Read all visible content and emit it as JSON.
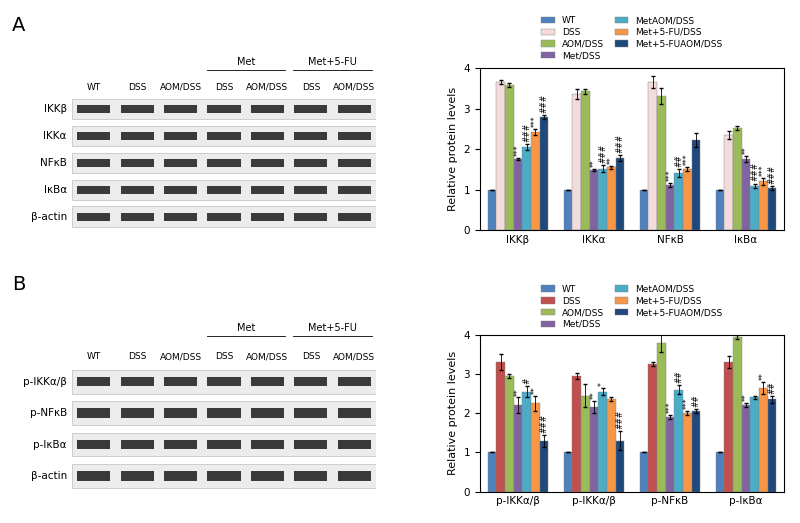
{
  "chart_data": [
    {
      "type": "bar",
      "categories": [
        "IKKβ",
        "IKKα",
        "NFκB",
        "IκBα"
      ],
      "y_label": "Relative protein levels",
      "ylim": [
        0,
        4
      ],
      "yticks": [
        0,
        1,
        2,
        3,
        4
      ],
      "legend": "upper center",
      "series": [
        {
          "name": "WT",
          "color": "#4F81BD",
          "values": [
            1,
            1,
            1,
            1
          ],
          "errors": [
            0,
            0,
            0,
            0
          ],
          "annotations": [
            null,
            null,
            null,
            null
          ]
        },
        {
          "name": "DSS",
          "color": "#F2DCDB",
          "values": [
            3.65,
            3.35,
            3.65,
            2.35
          ],
          "errors": [
            0.05,
            0.12,
            0.15,
            0.1
          ],
          "annotations": [
            null,
            null,
            null,
            null
          ]
        },
        {
          "name": "AOM/DSS",
          "color": "#9BBB59",
          "values": [
            3.58,
            3.42,
            3.3,
            2.52
          ],
          "errors": [
            0.05,
            0.05,
            0.2,
            0.05
          ],
          "annotations": [
            null,
            null,
            null,
            null
          ]
        },
        {
          "name": "Met/DSS",
          "color": "#8064A2",
          "values": [
            1.75,
            1.48,
            1.12,
            1.75
          ],
          "errors": [
            0.03,
            0.03,
            0.05,
            0.08
          ],
          "annotations": [
            "***",
            "**",
            "***",
            "**"
          ]
        },
        {
          "name": "MetAOM/DSS",
          "color": "#4BACC6",
          "values": [
            2.05,
            1.52,
            1.4,
            1.1
          ],
          "errors": [
            0.08,
            0.08,
            0.1,
            0.05
          ],
          "annotations": [
            "###",
            "###",
            "##",
            "###"
          ]
        },
        {
          "name": "Met+5-FU/DSS",
          "color": "#F79646",
          "values": [
            2.42,
            1.55,
            1.5,
            1.2
          ],
          "errors": [
            0.08,
            0.03,
            0.05,
            0.08
          ],
          "annotations": [
            "***",
            "**",
            "***",
            "***"
          ]
        },
        {
          "name": "Met+5-FUAOM/DSS",
          "color": "#1F497D",
          "values": [
            2.8,
            1.78,
            2.22,
            1.05
          ],
          "errors": [
            0.05,
            0.08,
            0.18,
            0.05
          ],
          "annotations": [
            "###",
            "###",
            null,
            "###"
          ]
        }
      ]
    },
    {
      "type": "bar",
      "categories": [
        "p-IKKα/β",
        "p-IKKα/β",
        "p-NFκB",
        "p-IκBα"
      ],
      "y_label": "Relative protein levels",
      "ylim": [
        0,
        4
      ],
      "yticks": [
        0,
        1,
        2,
        3,
        4
      ],
      "legend": "upper center",
      "series": [
        {
          "name": "WT",
          "color": "#4F81BD",
          "values": [
            1,
            1,
            1,
            1
          ],
          "errors": [
            0,
            0,
            0,
            0
          ],
          "annotations": [
            null,
            null,
            null,
            null
          ]
        },
        {
          "name": "DSS",
          "color": "#C0504D",
          "values": [
            3.3,
            2.95,
            3.25,
            3.3
          ],
          "errors": [
            0.2,
            0.08,
            0.05,
            0.15
          ],
          "annotations": [
            null,
            null,
            null,
            null
          ]
        },
        {
          "name": "AOM/DSS",
          "color": "#9BBB59",
          "values": [
            2.95,
            2.45,
            3.8,
            3.95
          ],
          "errors": [
            0.05,
            0.3,
            0.25,
            0.05
          ],
          "annotations": [
            null,
            null,
            null,
            null
          ]
        },
        {
          "name": "Met/DSS",
          "color": "#8064A2",
          "values": [
            2.2,
            2.15,
            1.9,
            2.2
          ],
          "errors": [
            0.2,
            0.15,
            0.05,
            0.05
          ],
          "annotations": [
            "**",
            "**",
            "***",
            "**"
          ]
        },
        {
          "name": "MetAOM/DSS",
          "color": "#4BACC6",
          "values": [
            2.55,
            2.55,
            2.6,
            2.4
          ],
          "errors": [
            0.15,
            0.08,
            0.12,
            0.05
          ],
          "annotations": [
            "#",
            "*",
            "##",
            null
          ]
        },
        {
          "name": "Met+5-FU/DSS",
          "color": "#F79646",
          "values": [
            2.25,
            2.35,
            2.0,
            2.65
          ],
          "errors": [
            0.2,
            0.05,
            0.05,
            0.15
          ],
          "annotations": [
            "**",
            null,
            "***",
            "**"
          ]
        },
        {
          "name": "Met+5-FUAOM/DSS",
          "color": "#1F497D",
          "values": [
            1.3,
            1.3,
            2.05,
            2.35
          ],
          "errors": [
            0.15,
            0.25,
            0.05,
            0.1
          ],
          "annotations": [
            "###",
            "###",
            "##",
            "##"
          ]
        }
      ]
    }
  ],
  "blots": [
    {
      "panel": "A",
      "lanes": [
        "WT",
        "DSS",
        "AOM/DSS",
        "DSS",
        "AOM/DSS",
        "DSS",
        "AOM/DSS"
      ],
      "groups": [
        null,
        null,
        null,
        "Met",
        "Met",
        "Met+5-FU",
        "Met+5-FU"
      ],
      "rows": [
        "IKKβ",
        "IKKα",
        "NFκB",
        "IκBα",
        "β-actin"
      ]
    },
    {
      "panel": "B",
      "lanes": [
        "WT",
        "DSS",
        "AOM/DSS",
        "DSS",
        "AOM/DSS",
        "DSS",
        "AOM/DSS"
      ],
      "groups": [
        null,
        null,
        null,
        "Met",
        "Met",
        "Met+5-FU",
        "Met+5-FU"
      ],
      "rows": [
        "p-IKKα/β",
        "p-NFκB",
        "p-IκBα",
        "β-actin"
      ]
    }
  ]
}
